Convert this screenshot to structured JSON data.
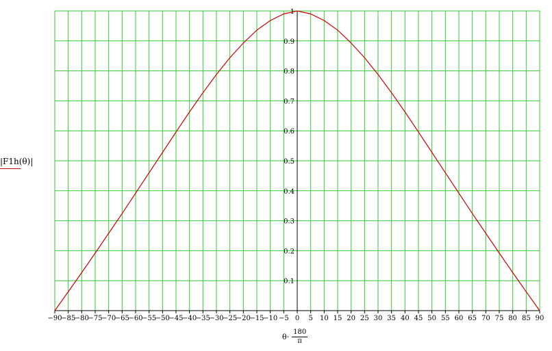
{
  "chart_data": {
    "type": "line",
    "title": "",
    "xlabel": "θ·180/π",
    "xlabel_parts": {
      "var": "θ·",
      "num": "180",
      "den": "π"
    },
    "ylabel": "|F1h(θ)|",
    "xlim": [
      -90,
      90
    ],
    "ylim": [
      0,
      1
    ],
    "grid": true,
    "x_ticks": [
      -90,
      -85,
      -80,
      -75,
      -70,
      -65,
      -60,
      -55,
      -50,
      -45,
      -40,
      -35,
      -30,
      -25,
      -20,
      -15,
      -10,
      -5,
      0,
      5,
      10,
      15,
      20,
      25,
      30,
      35,
      40,
      45,
      50,
      55,
      60,
      65,
      70,
      75,
      80,
      85,
      90
    ],
    "y_ticks": [
      0.1,
      0.2,
      0.3,
      0.4,
      0.5,
      0.6,
      0.7,
      0.8,
      0.9,
      1
    ],
    "y_tick_labels": [
      "0.1",
      "0.2",
      "0.3",
      "0.4",
      "0.5",
      "0.6",
      "0.7",
      "0.8",
      "0.9",
      "1"
    ],
    "series": [
      {
        "name": "|F1h(θ)|",
        "color": "#cc0000",
        "x": [
          -90,
          -85,
          -80,
          -75,
          -70,
          -65,
          -60,
          -55,
          -50,
          -45,
          -40,
          -35,
          -30,
          -25,
          -20,
          -15,
          -10,
          -5,
          0,
          5,
          10,
          15,
          20,
          25,
          30,
          35,
          40,
          45,
          50,
          55,
          60,
          65,
          70,
          75,
          80,
          85,
          90
        ],
        "y": [
          0,
          0.063,
          0.127,
          0.192,
          0.258,
          0.324,
          0.392,
          0.46,
          0.528,
          0.596,
          0.663,
          0.727,
          0.788,
          0.844,
          0.893,
          0.936,
          0.968,
          0.99,
          1,
          0.99,
          0.968,
          0.936,
          0.893,
          0.844,
          0.788,
          0.727,
          0.663,
          0.596,
          0.528,
          0.46,
          0.392,
          0.324,
          0.258,
          0.192,
          0.127,
          0.063,
          0
        ]
      }
    ],
    "colors": {
      "grid": "#33cc33",
      "axis": "#000000",
      "line": "#cc0000"
    }
  }
}
